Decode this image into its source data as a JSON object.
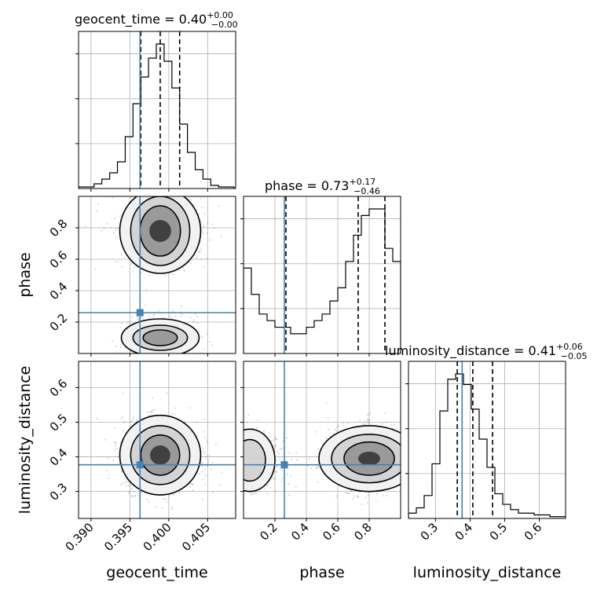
{
  "chart_data": {
    "type": "corner",
    "parameters": [
      "geocent_time",
      "phase",
      "luminosity_distance"
    ],
    "truths": {
      "geocent_time": 0.3963,
      "phase": 0.26,
      "luminosity_distance": 0.377
    },
    "titles": [
      {
        "param": "geocent_time",
        "main": "geocent_time = 0.40",
        "plus": "+0.00",
        "minus": "−0.00"
      },
      {
        "param": "phase",
        "main": "phase = 0.73",
        "plus": "+0.17",
        "minus": "−0.46"
      },
      {
        "param": "luminosity_distance",
        "main": "luminosity_distance = 0.41",
        "plus": "+0.06",
        "minus": "−0.05"
      }
    ],
    "axes": {
      "geocent_time": {
        "range": [
          0.3884,
          0.4086
        ],
        "ticks": [
          0.39,
          0.395,
          0.4,
          0.405
        ],
        "tick_labels": [
          "0.390",
          "0.395",
          "0.400",
          "0.405"
        ]
      },
      "phase": {
        "range": [
          0.0,
          1.0
        ],
        "ticks": [
          0.2,
          0.4,
          0.6,
          0.8
        ],
        "tick_labels": [
          "0.2",
          "0.4",
          "0.6",
          "0.8"
        ]
      },
      "luminosity_distance": {
        "range": [
          0.222,
          0.676
        ],
        "ticks": [
          0.3,
          0.4,
          0.5,
          0.6
        ],
        "tick_labels": [
          "0.3",
          "0.4",
          "0.5",
          "0.6"
        ]
      }
    },
    "quantiles": {
      "geocent_time": [
        0.3964,
        0.3989,
        0.4014
      ],
      "phase": [
        0.27,
        0.73,
        0.9
      ],
      "luminosity_distance": [
        0.363,
        0.408,
        0.465
      ]
    },
    "histograms": {
      "geocent_time": {
        "edges_start": 0.3884,
        "bin_width": 0.001,
        "counts": [
          1,
          1,
          3,
          6,
          10,
          17,
          33,
          54,
          71,
          83,
          92,
          81,
          64,
          41,
          23,
          12,
          6,
          2,
          1,
          1
        ]
      },
      "phase": {
        "edges_start": 0.0,
        "bin_width": 0.05,
        "counts": [
          13,
          9,
          6,
          5,
          4,
          4,
          3,
          3,
          4,
          5,
          6,
          8,
          10,
          14,
          18,
          21,
          22,
          22,
          16,
          14
        ]
      },
      "luminosity_distance": {
        "edges_start": 0.222,
        "bin_width": 0.0227,
        "counts": [
          3,
          6,
          13,
          31,
          61,
          79,
          82,
          76,
          62,
          45,
          29,
          14,
          8,
          5,
          3,
          3,
          2,
          2,
          1,
          1
        ]
      }
    },
    "grid": true,
    "grid_color": "#b0b0b0",
    "truth_color": "#4682b4",
    "hist_color": "#000000"
  }
}
